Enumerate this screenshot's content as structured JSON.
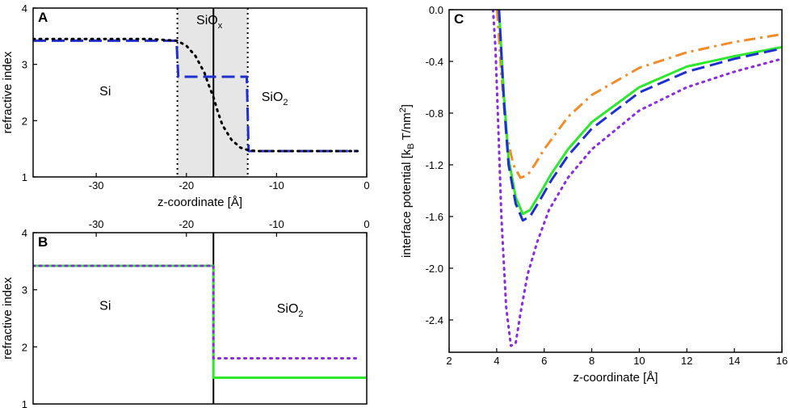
{
  "chart_data": [
    {
      "id": "A",
      "type": "line",
      "panel_label": "A",
      "xlabel": "z-coordinate [Å]",
      "ylabel": "refractive index",
      "xlim": [
        -37,
        0
      ],
      "ylim": [
        1,
        4
      ],
      "xticks": [
        -30,
        -20,
        -10,
        0
      ],
      "yticks": [
        1,
        2,
        3,
        4
      ],
      "shaded_region": {
        "x": [
          -21,
          -13.2
        ],
        "label": "SiO",
        "label_sub": "x"
      },
      "vlines": [
        {
          "x": -21,
          "style": "dotted"
        },
        {
          "x": -13.2,
          "style": "dotted"
        },
        {
          "x": -17,
          "style": "solid"
        }
      ],
      "region_labels": [
        {
          "text": "Si",
          "sub": "",
          "x": -29,
          "y": 2.45
        },
        {
          "text": "SiO",
          "sub": "2",
          "x": -10.2,
          "y": 2.35
        }
      ],
      "series": [
        {
          "name": "step profile (blue dashed)",
          "color": "#1f2fd0",
          "style": "dashed",
          "x": [
            -37,
            -21.1,
            -20.9,
            -13.3,
            -13.1,
            -1
          ],
          "y": [
            3.42,
            3.42,
            2.78,
            2.78,
            1.46,
            1.46
          ]
        },
        {
          "name": "smooth profile (black dotted)",
          "color": "#000000",
          "style": "dotted",
          "x": [
            -37,
            -24,
            -21,
            -20,
            -19,
            -18,
            -17.5,
            -17,
            -16.5,
            -16,
            -15,
            -14,
            -13,
            -12,
            -1
          ],
          "y": [
            3.45,
            3.45,
            3.42,
            3.33,
            3.15,
            2.85,
            2.62,
            2.42,
            2.15,
            1.92,
            1.66,
            1.52,
            1.47,
            1.46,
            1.46
          ]
        }
      ]
    },
    {
      "id": "B",
      "type": "line",
      "panel_label": "B",
      "xlim": [
        -37,
        0
      ],
      "ylim": [
        1,
        4
      ],
      "ylabel": "refractive index",
      "xticks": [
        -30,
        -20,
        -10,
        0
      ],
      "yticks": [
        1,
        2,
        3,
        4
      ],
      "xticks_position": "top",
      "vlines": [
        {
          "x": -17,
          "style": "solid"
        }
      ],
      "region_labels": [
        {
          "text": "Si",
          "sub": "",
          "x": -29,
          "y": 2.65
        },
        {
          "text": "SiO",
          "sub": "2",
          "x": -8.5,
          "y": 2.6
        }
      ],
      "series": [
        {
          "name": "green solid",
          "color": "#2ee82e",
          "style": "solid",
          "x": [
            -37,
            -17,
            -17,
            0
          ],
          "y": [
            3.42,
            3.42,
            1.46,
            1.46
          ]
        },
        {
          "name": "purple dotted",
          "color": "#8a2be2",
          "style": "dotted",
          "x": [
            -37,
            -17,
            -17,
            -1
          ],
          "y": [
            3.42,
            3.42,
            1.8,
            1.8
          ]
        }
      ]
    },
    {
      "id": "C",
      "type": "line",
      "panel_label": "C",
      "xlabel": "z-coordinate [Å]",
      "ylabel": "interface potential [k",
      "ylabel_sub": "B",
      "ylabel_tail": " T/nm",
      "ylabel_sup": "2",
      "ylabel_end": "]",
      "xlim": [
        2,
        16
      ],
      "ylim": [
        -2.65,
        0
      ],
      "xticks": [
        2,
        4,
        6,
        8,
        10,
        12,
        14,
        16
      ],
      "yticks": [
        0,
        -0.4,
        -0.8,
        -1.2,
        -1.6,
        -2.0,
        -2.4
      ],
      "ytick_labels": [
        "0.0",
        "-0.4",
        "-0.8",
        "-1.2",
        "-1.6",
        "-2.0",
        "-2.4"
      ],
      "series": [
        {
          "name": "orange dash-dot",
          "color": "#f28c28",
          "style": "dashdot",
          "x": [
            4.02,
            4.2,
            4.4,
            4.7,
            5.0,
            5.3,
            5.6,
            6.0,
            7.0,
            8.0,
            10.0,
            12.0,
            14.0,
            16.0
          ],
          "y": [
            0,
            -0.5,
            -0.95,
            -1.2,
            -1.3,
            -1.28,
            -1.2,
            -1.08,
            -0.83,
            -0.66,
            -0.45,
            -0.33,
            -0.25,
            -0.19
          ]
        },
        {
          "name": "green solid",
          "color": "#2ee82e",
          "style": "solid",
          "x": [
            4.1,
            4.3,
            4.5,
            4.8,
            5.1,
            5.4,
            5.8,
            6.3,
            7.0,
            8.0,
            10.0,
            12.0,
            14.0,
            16.0
          ],
          "y": [
            0,
            -0.65,
            -1.15,
            -1.45,
            -1.58,
            -1.55,
            -1.43,
            -1.27,
            -1.08,
            -0.87,
            -0.6,
            -0.44,
            -0.36,
            -0.29
          ]
        },
        {
          "name": "blue dashed",
          "color": "#1f2fd0",
          "style": "dashed",
          "x": [
            4.1,
            4.3,
            4.5,
            4.8,
            5.1,
            5.4,
            5.8,
            6.3,
            7.0,
            8.0,
            10.0,
            12.0,
            14.0,
            16.0
          ],
          "y": [
            0,
            -0.7,
            -1.2,
            -1.5,
            -1.63,
            -1.6,
            -1.48,
            -1.32,
            -1.13,
            -0.92,
            -0.64,
            -0.48,
            -0.38,
            -0.3
          ]
        },
        {
          "name": "purple dotted",
          "color": "#8a2be2",
          "style": "dotted",
          "x": [
            3.85,
            3.95,
            4.05,
            4.2,
            4.4,
            4.6,
            4.8,
            5.0,
            5.3,
            5.7,
            6.2,
            7.0,
            8.0,
            10.0,
            12.0,
            14.0,
            16.0
          ],
          "y": [
            0,
            -0.3,
            -0.8,
            -1.6,
            -2.3,
            -2.6,
            -2.58,
            -2.35,
            -2.05,
            -1.8,
            -1.55,
            -1.3,
            -1.08,
            -0.78,
            -0.6,
            -0.48,
            -0.38
          ]
        }
      ]
    }
  ]
}
